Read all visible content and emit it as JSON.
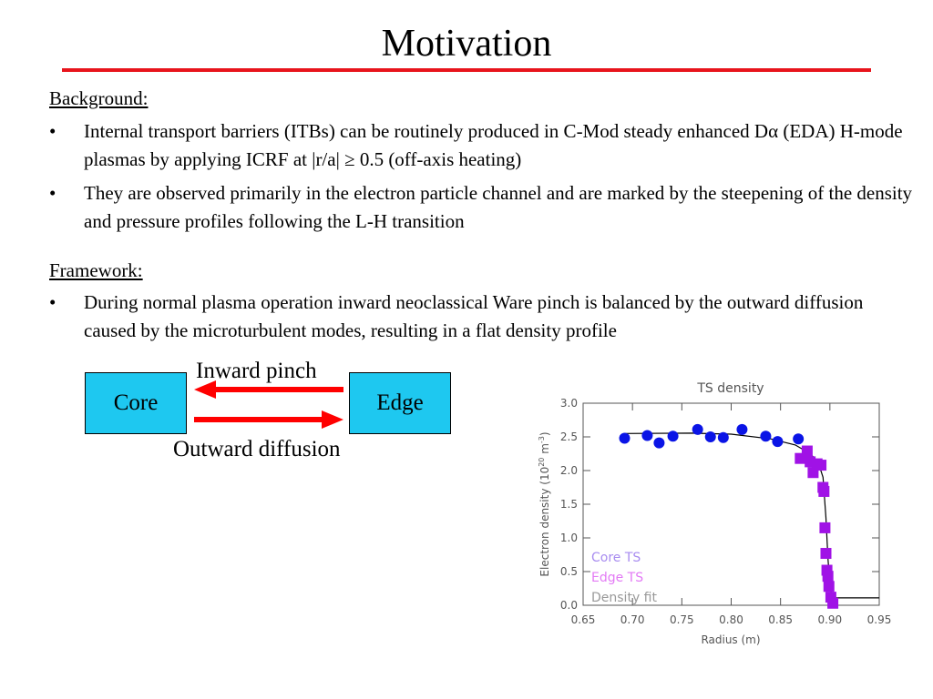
{
  "slide": {
    "title": "Motivation",
    "background": {
      "heading": "Background:",
      "bullets": [
        {
          "marker": "•",
          "text": "Internal transport barriers (ITBs) can be routinely produced in C-Mod steady enhanced Dα (EDA) H-mode plasmas by applying ICRF at |r/a| ≥ 0.5 (off-axis heating)"
        },
        {
          "marker": "•",
          "text": "They are observed primarily in the electron particle channel and are marked by the steepening of the density and pressure profiles following the L-H transition"
        }
      ]
    },
    "framework": {
      "heading": "Framework:",
      "bullets": [
        {
          "marker": "•",
          "text": "During normal plasma operation inward neoclassical Ware pinch is balanced by the outward diffusion caused by the microturbulent modes, resulting in a flat density profile"
        }
      ]
    },
    "diagram": {
      "core_label": "Core",
      "edge_label": "Edge",
      "inward_label": "Inward pinch",
      "outward_label": "Outward diffusion"
    }
  },
  "colors": {
    "title_rule": "#e8141c",
    "box_fill": "#1ec8f0",
    "arrow": "#ff0000",
    "core_ts": "#0a14e6",
    "edge_ts": "#a012e6",
    "fit_line": "#000000",
    "chart_text": "#555555"
  },
  "chart_data": {
    "type": "scatter",
    "title": "TS density",
    "xlabel": "Radius (m)",
    "ylabel_parts": [
      "Electron density (10",
      "20",
      " m",
      "-3",
      ")"
    ],
    "xlim": [
      0.65,
      0.95
    ],
    "ylim": [
      0.0,
      3.0
    ],
    "xticks": [
      "0.65",
      "0.70",
      "0.75",
      "0.80",
      "0.85",
      "0.90",
      "0.95"
    ],
    "yticks": [
      "0.0",
      "0.5",
      "1.0",
      "1.5",
      "2.0",
      "2.5",
      "3.0"
    ],
    "legend": [
      "Core TS",
      "Edge TS",
      "Density fit"
    ],
    "legend_position": "bottom-left",
    "series": [
      {
        "name": "Core TS",
        "marker": "circle",
        "points": [
          [
            0.692,
            2.48
          ],
          [
            0.715,
            2.52
          ],
          [
            0.727,
            2.41
          ],
          [
            0.741,
            2.51
          ],
          [
            0.766,
            2.61
          ],
          [
            0.779,
            2.5
          ],
          [
            0.792,
            2.49
          ],
          [
            0.811,
            2.61
          ],
          [
            0.835,
            2.51
          ],
          [
            0.847,
            2.43
          ],
          [
            0.868,
            2.47
          ]
        ]
      },
      {
        "name": "Edge TS",
        "marker": "square",
        "points": [
          [
            0.87,
            2.18
          ],
          [
            0.877,
            2.29
          ],
          [
            0.88,
            2.13
          ],
          [
            0.883,
            1.97
          ],
          [
            0.887,
            2.1
          ],
          [
            0.891,
            2.08
          ],
          [
            0.893,
            1.75
          ],
          [
            0.894,
            1.69
          ],
          [
            0.895,
            1.15
          ],
          [
            0.896,
            0.77
          ],
          [
            0.897,
            0.52
          ],
          [
            0.898,
            0.43
          ],
          [
            0.899,
            0.28
          ],
          [
            0.901,
            0.12
          ],
          [
            0.903,
            0.03
          ]
        ]
      },
      {
        "name": "Density fit",
        "marker": "line",
        "points": [
          [
            0.692,
            2.55
          ],
          [
            0.76,
            2.555
          ],
          [
            0.8,
            2.54
          ],
          [
            0.84,
            2.47
          ],
          [
            0.865,
            2.38
          ],
          [
            0.88,
            2.25
          ],
          [
            0.888,
            2.13
          ],
          [
            0.893,
            1.9
          ],
          [
            0.896,
            1.3
          ],
          [
            0.898,
            0.7
          ],
          [
            0.9,
            0.3
          ],
          [
            0.902,
            0.14
          ],
          [
            0.905,
            0.11
          ],
          [
            0.95,
            0.11
          ]
        ]
      }
    ]
  }
}
